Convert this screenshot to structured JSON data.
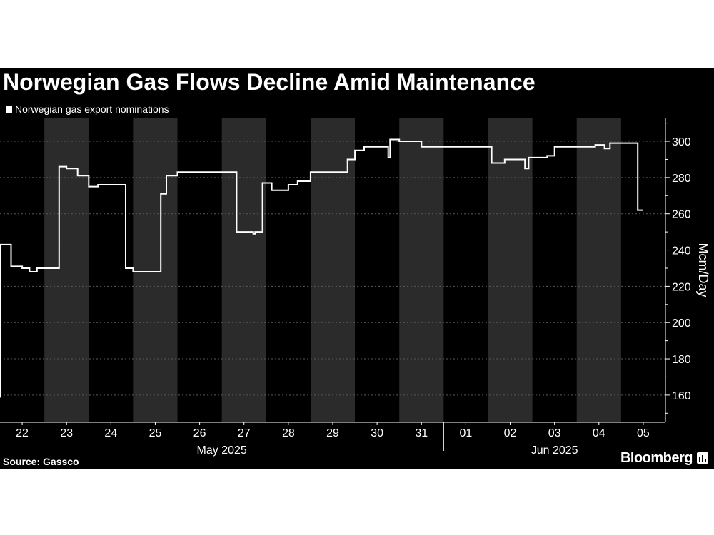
{
  "colors": {
    "background": "#000000",
    "band": "#2b2b2b",
    "line": "#ffffff",
    "grid": "#5a5a5a",
    "text": "#ffffff"
  },
  "title": "Norwegian Gas Flows Decline Amid Maintenance",
  "source": "Source: Gassco",
  "brand": {
    "name": "Bloomberg",
    "icon": "bloomberg-bars-icon"
  },
  "chart_data": {
    "type": "line",
    "step": true,
    "title": "Norwegian Gas Flows Decline Amid Maintenance",
    "ylabel": "Mcm/Day",
    "xlabel": "",
    "ylim": [
      145,
      313
    ],
    "yticks": [
      160,
      180,
      200,
      220,
      240,
      260,
      280,
      300
    ],
    "ytick_labels": [
      "160",
      "180",
      "200",
      "220",
      "240",
      "260",
      "280",
      "300"
    ],
    "y_axis_side": "right",
    "grid": "horizontal dashed",
    "legend_position": "top-left",
    "x_unit": "day",
    "xlim": [
      "2025-05-21T12:00",
      "2025-06-05T12:00"
    ],
    "x_ticks": [
      "22",
      "23",
      "24",
      "25",
      "26",
      "27",
      "28",
      "29",
      "30",
      "31",
      "01",
      "02",
      "03",
      "04",
      "05"
    ],
    "x_groups": [
      {
        "label": "May 2025",
        "first_tick": 0,
        "last_tick": 9
      },
      {
        "label": "Jun 2025",
        "first_tick": 10,
        "last_tick": 14
      }
    ],
    "shaded_days": [
      "23",
      "25",
      "27",
      "29",
      "31",
      "02",
      "04"
    ],
    "series": [
      {
        "name": "Norwegian gas export nominations",
        "color": "#ffffff",
        "x": [
          "2025-05-21T12:00",
          "2025-05-21T12:10",
          "2025-05-21T12:10",
          "2025-05-21T18:00",
          "2025-05-21T18:00",
          "2025-05-22T00:00",
          "2025-05-22T00:00",
          "2025-05-22T04:00",
          "2025-05-22T04:00",
          "2025-05-22T08:00",
          "2025-05-22T08:00",
          "2025-05-22T14:00",
          "2025-05-22T14:00",
          "2025-05-22T20:00",
          "2025-05-22T20:00",
          "2025-05-23T00:00",
          "2025-05-23T00:00",
          "2025-05-23T06:00",
          "2025-05-23T06:00",
          "2025-05-23T12:00",
          "2025-05-23T12:00",
          "2025-05-23T17:00",
          "2025-05-23T17:00",
          "2025-05-23T21:00",
          "2025-05-23T21:00",
          "2025-05-24T08:00",
          "2025-05-24T08:00",
          "2025-05-24T12:00",
          "2025-05-24T12:00",
          "2025-05-24T12:00",
          "2025-05-25T03:00",
          "2025-05-25T03:00",
          "2025-05-25T06:00",
          "2025-05-25T06:00",
          "2025-05-25T12:00",
          "2025-05-25T12:00",
          "2025-05-25T22:00",
          "2025-05-25T22:00",
          "2025-05-26T20:00",
          "2025-05-26T20:00",
          "2025-05-27T05:00",
          "2025-05-27T05:00",
          "2025-05-27T06:00",
          "2025-05-27T06:00",
          "2025-05-27T10:00",
          "2025-05-27T10:00",
          "2025-05-27T15:00",
          "2025-05-27T15:00",
          "2025-05-28T00:00",
          "2025-05-28T00:00",
          "2025-05-28T05:00",
          "2025-05-28T05:00",
          "2025-05-28T12:00",
          "2025-05-28T12:00",
          "2025-05-28T20:00",
          "2025-05-28T20:00",
          "2025-05-29T08:00",
          "2025-05-29T08:00",
          "2025-05-29T12:00",
          "2025-05-29T12:00",
          "2025-05-29T17:00",
          "2025-05-29T17:00",
          "2025-05-30T06:00",
          "2025-05-30T06:00",
          "2025-05-30T07:00",
          "2025-05-30T07:00",
          "2025-05-30T12:00",
          "2025-05-30T12:00",
          "2025-05-31T00:00",
          "2025-05-31T00:00",
          "2025-05-31T21:00",
          "2025-05-31T21:00",
          "2025-06-01T14:00",
          "2025-06-01T14:00",
          "2025-06-01T21:00",
          "2025-06-01T21:00",
          "2025-06-02T01:00",
          "2025-06-02T01:00",
          "2025-06-02T08:00",
          "2025-06-02T08:00",
          "2025-06-02T10:00",
          "2025-06-02T10:00",
          "2025-06-02T20:00",
          "2025-06-02T20:00",
          "2025-06-03T00:00",
          "2025-06-03T00:00",
          "2025-06-03T22:00",
          "2025-06-03T22:00",
          "2025-06-04T03:00",
          "2025-06-04T03:00",
          "2025-06-04T06:00",
          "2025-06-04T06:00",
          "2025-06-04T10:00",
          "2025-06-04T10:00",
          "2025-06-04T21:00",
          "2025-06-04T21:00",
          "2025-06-05T00:00"
        ],
        "y": [
          159,
          159,
          243,
          243,
          231,
          231,
          230,
          230,
          228,
          228,
          230,
          230,
          230,
          230,
          286,
          286,
          285,
          285,
          281,
          281,
          275,
          275,
          276,
          276,
          276,
          276,
          230,
          230,
          228,
          228,
          228,
          271,
          271,
          281,
          281,
          283,
          283,
          283,
          283,
          250,
          250,
          249,
          249,
          250,
          250,
          277,
          277,
          273,
          273,
          276,
          276,
          278,
          278,
          283,
          283,
          283,
          283,
          290,
          290,
          295,
          295,
          297,
          297,
          291,
          291,
          301,
          301,
          300,
          300,
          297,
          297,
          297,
          297,
          288,
          288,
          290,
          290,
          290,
          290,
          285,
          285,
          291,
          291,
          292,
          292,
          297,
          297,
          298,
          298,
          296,
          296,
          299,
          299,
          299,
          299,
          262,
          262
        ]
      }
    ]
  }
}
